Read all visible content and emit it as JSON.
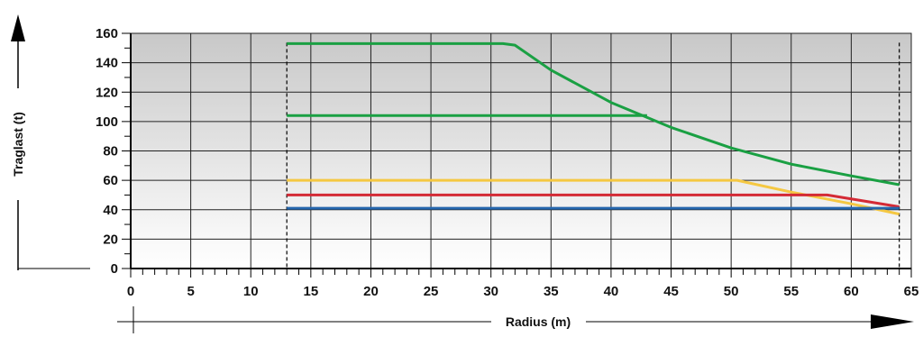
{
  "chart_data": {
    "type": "line",
    "title": "",
    "xlabel": "Radius (m)",
    "ylabel": "Traglast (t)",
    "xlim": [
      0,
      65
    ],
    "ylim": [
      0,
      160
    ],
    "xticks": [
      "0",
      "5",
      "10",
      "15",
      "20",
      "25",
      "30",
      "35",
      "40",
      "45",
      "50",
      "55",
      "60",
      "65"
    ],
    "yticks": [
      "0",
      "20",
      "40",
      "60",
      "80",
      "100",
      "120",
      "140",
      "160"
    ],
    "grid": true,
    "minor_x_step": 1,
    "minor_y_step": 10,
    "reference_lines": [
      13,
      64
    ],
    "series": [
      {
        "color": "#1aa043",
        "x": [
          13,
          31,
          32,
          35,
          40,
          45,
          50,
          55,
          60,
          64
        ],
        "y": [
          153,
          153,
          152,
          135,
          113,
          96,
          82,
          71,
          63,
          57
        ]
      },
      {
        "color": "#1aa043",
        "x": [
          13,
          43
        ],
        "y": [
          104,
          104
        ]
      },
      {
        "color": "#f5c842",
        "x": [
          13,
          50.5,
          55,
          60,
          64
        ],
        "y": [
          60,
          60,
          52,
          44,
          37
        ]
      },
      {
        "color": "#d42a35",
        "x": [
          13,
          58,
          64
        ],
        "y": [
          50,
          50,
          42
        ]
      },
      {
        "color": "#2466ad",
        "x": [
          13,
          64
        ],
        "y": [
          41,
          41
        ]
      }
    ]
  }
}
